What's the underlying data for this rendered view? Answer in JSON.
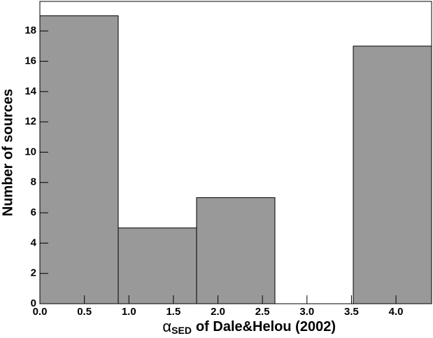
{
  "chart_data": {
    "type": "histogram",
    "ylabel": "Number of sources",
    "xlabel": {
      "symbol": "α",
      "subscript": "SED",
      "text": "of Dale&Helou (2002)"
    },
    "bins": [
      0,
      0.88,
      1.76,
      2.64,
      3.52,
      4.4
    ],
    "values": [
      19,
      5,
      7,
      0,
      17
    ],
    "color": "#999999",
    "xlim": [
      0,
      4.4
    ],
    "ylim": [
      0,
      19.95
    ],
    "xticks": [
      {
        "value": 0,
        "label": "0.0"
      },
      {
        "value": 0.5,
        "label": "0.5"
      },
      {
        "value": 1,
        "label": "1.0"
      },
      {
        "value": 1.5,
        "label": "1.5"
      },
      {
        "value": 2,
        "label": "2.0"
      },
      {
        "value": 2.5,
        "label": "2.5"
      },
      {
        "value": 3,
        "label": "3.0"
      },
      {
        "value": 3.5,
        "label": "3.5"
      },
      {
        "value": 4,
        "label": "4.0"
      }
    ],
    "yticks": [
      0,
      2,
      4,
      6,
      8,
      10,
      12,
      14,
      16,
      18
    ]
  }
}
